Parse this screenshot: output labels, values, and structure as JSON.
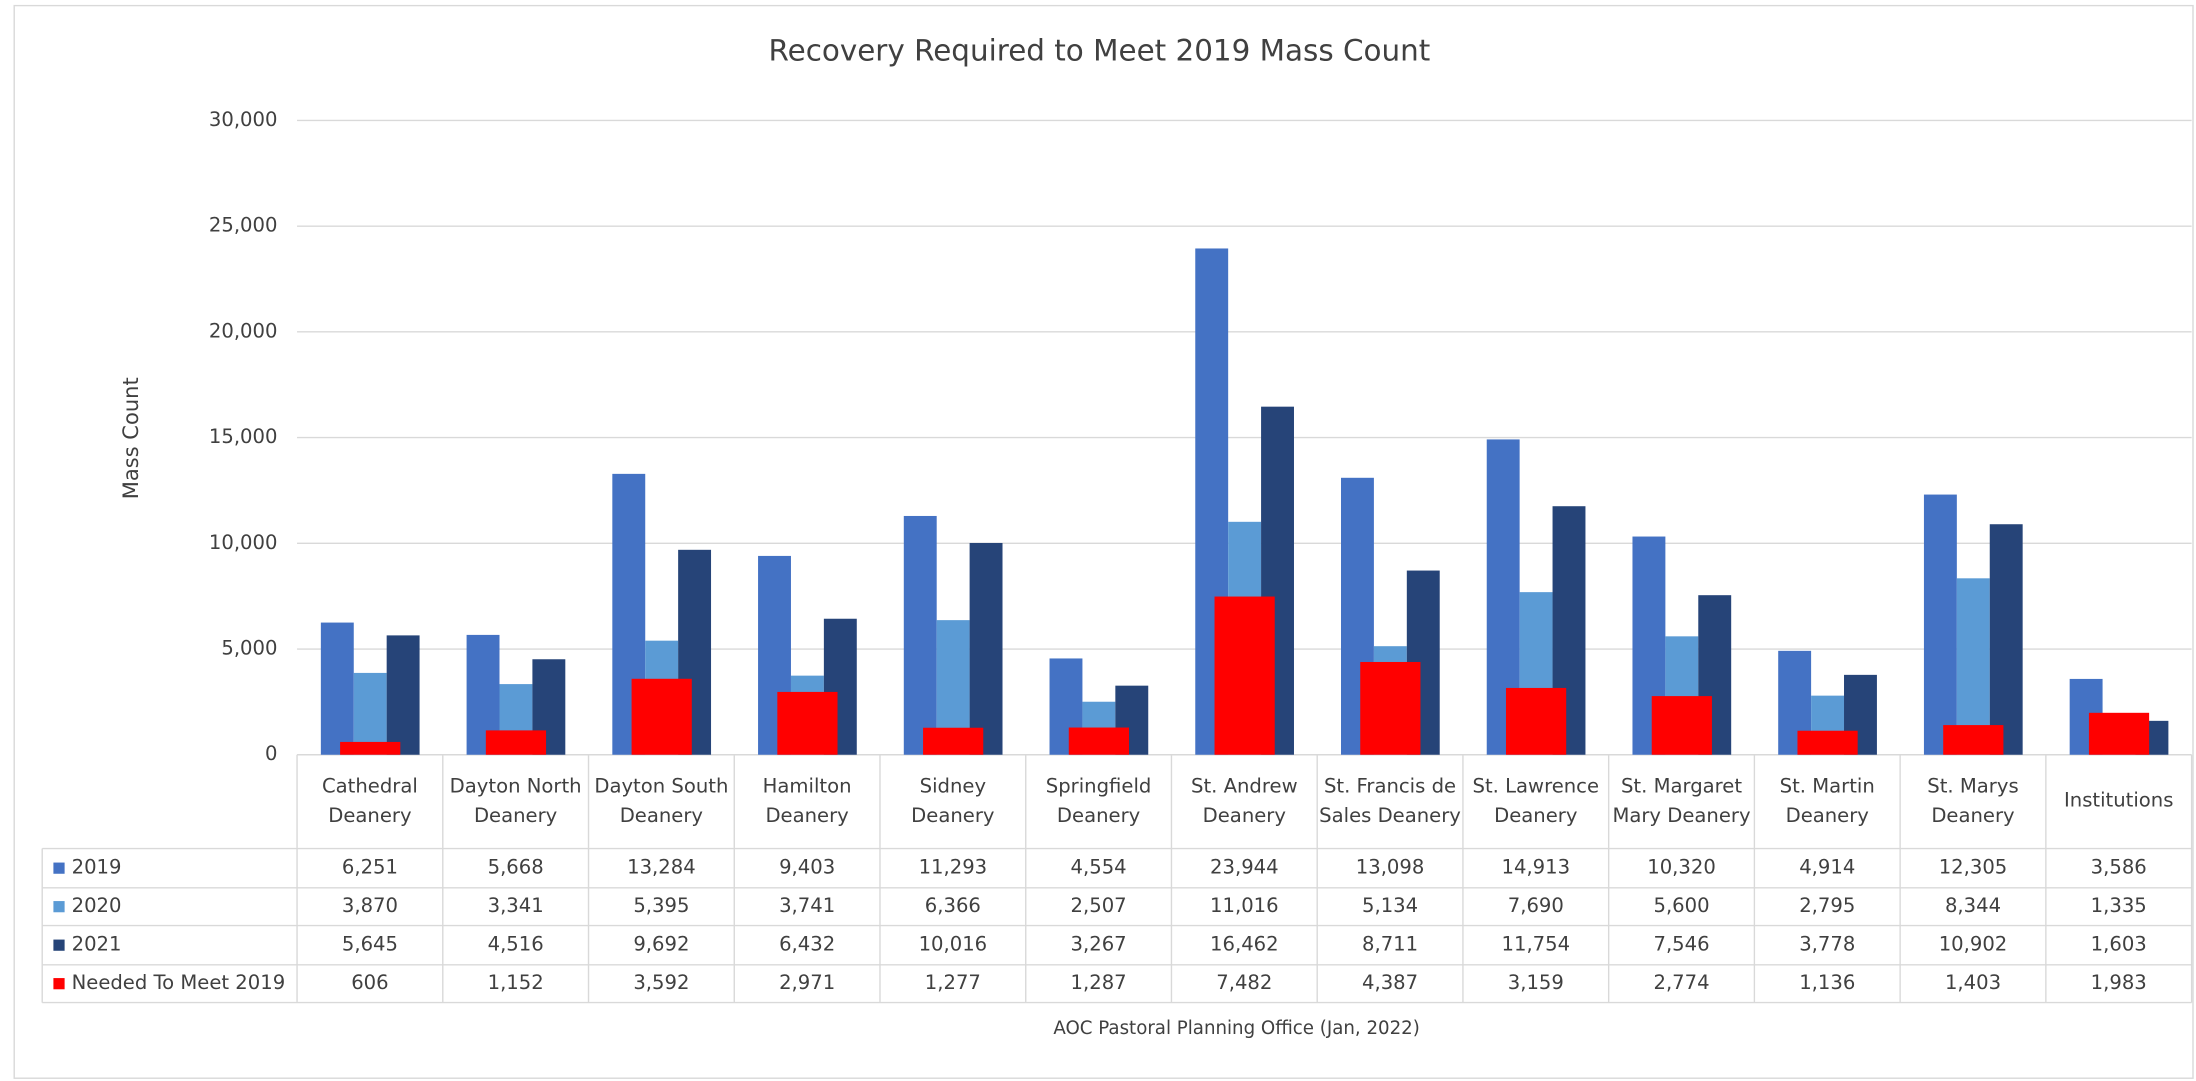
{
  "chart_data": {
    "type": "bar",
    "title": "Recovery Required to Meet 2019 Mass Count",
    "y_label": "Mass Count",
    "footer": "AOC Pastoral Planning Office (Jan, 2022)",
    "categories": [
      "Cathedral Deanery",
      "Dayton North Deanery",
      "Dayton South Deanery",
      "Hamilton Deanery",
      "Sidney Deanery",
      "Springfield Deanery",
      "St. Andrew Deanery",
      "St. Francis de Sales Deanery",
      "St. Lawrence Deanery",
      "St. Margaret Mary Deanery",
      "St. Martin Deanery",
      "St. Marys Deanery",
      "Institutions"
    ],
    "series": [
      {
        "name": "2019",
        "color": "#4472c4",
        "values": [
          6251,
          5668,
          13284,
          9403,
          11293,
          4554,
          23944,
          13098,
          14913,
          10320,
          4914,
          12305,
          3586
        ],
        "value_labels": [
          "6,251",
          "5,668",
          "13,284",
          "9,403",
          "11,293",
          "4,554",
          "23,944",
          "13,098",
          "14,913",
          "10,320",
          "4,914",
          "12,305",
          "3,586"
        ]
      },
      {
        "name": "2020",
        "color": "#5b9bd5",
        "values": [
          3870,
          3341,
          5395,
          3741,
          6366,
          2507,
          11016,
          5134,
          7690,
          5600,
          2795,
          8344,
          1335
        ],
        "value_labels": [
          "3,870",
          "3,341",
          "5,395",
          "3,741",
          "6,366",
          "2,507",
          "11,016",
          "5,134",
          "7,690",
          "5,600",
          "2,795",
          "8,344",
          "1,335"
        ]
      },
      {
        "name": "2021",
        "color": "#264478",
        "values": [
          5645,
          4516,
          9692,
          6432,
          10016,
          3267,
          16462,
          8711,
          11754,
          7546,
          3778,
          10902,
          1603
        ],
        "value_labels": [
          "5,645",
          "4,516",
          "9,692",
          "6,432",
          "10,016",
          "3,267",
          "16,462",
          "8,711",
          "11,754",
          "7,546",
          "3,778",
          "10,902",
          "1,603"
        ]
      },
      {
        "name": "Needed To Meet 2019",
        "color": "#ff0000",
        "values": [
          606,
          1152,
          3592,
          2971,
          1277,
          1287,
          7482,
          4387,
          3159,
          2774,
          1136,
          1403,
          1983
        ],
        "value_labels": [
          "606",
          "1,152",
          "3,592",
          "2,971",
          "1,277",
          "1,287",
          "7,482",
          "4,387",
          "3,159",
          "2,774",
          "1,136",
          "1,403",
          "1,983"
        ]
      }
    ],
    "ylim": [
      0,
      30000
    ],
    "yticks": [
      0,
      {
        "value": 5000,
        "label": "5,000"
      },
      {
        "value": 10000,
        "label": "10,000"
      },
      {
        "value": 15000,
        "label": "15,000"
      },
      {
        "value": 20000,
        "label": "20,000"
      },
      {
        "value": 25000,
        "label": "25,000"
      },
      {
        "value": 30000,
        "label": "30,000"
      }
    ],
    "grid": true
  }
}
